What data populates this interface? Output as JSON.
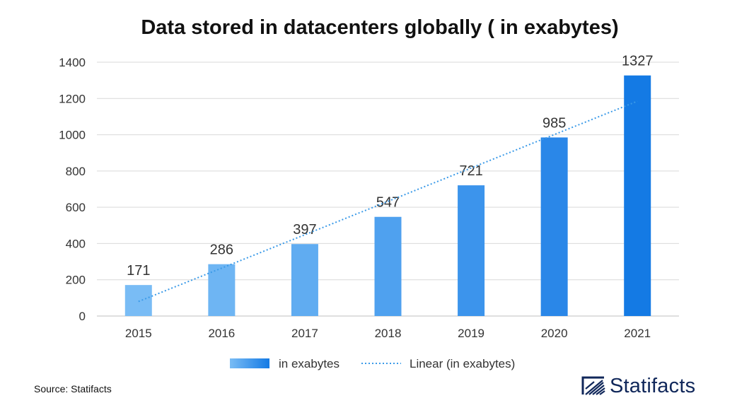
{
  "chart_data": {
    "type": "bar",
    "title": "Data stored in datacenters globally ( in exabytes)",
    "categories": [
      "2015",
      "2016",
      "2017",
      "2018",
      "2019",
      "2020",
      "2021"
    ],
    "series": [
      {
        "name": "in exabytes",
        "values": [
          171,
          286,
          397,
          547,
          721,
          985,
          1327
        ]
      }
    ],
    "trendline": {
      "name": "Linear (in exabytes)",
      "type": "linear",
      "start": 80,
      "end": 1185
    },
    "ylim": [
      0,
      1400
    ],
    "yticks": [
      0,
      200,
      400,
      600,
      800,
      1000,
      1200,
      1400
    ],
    "grid": true,
    "legend": "bottom",
    "colors": [
      "#79bcf5",
      "#6eb5f3",
      "#60acf1",
      "#4fa1ef",
      "#3c94ec",
      "#2a87e8",
      "#147ae4"
    ],
    "trend_color": "#3a9ae8",
    "grid_color": "#d9d9d9"
  },
  "footer": {
    "source": "Source: Statifacts",
    "brand": "Statifacts",
    "brand_icon": "statifacts-logo-icon"
  }
}
